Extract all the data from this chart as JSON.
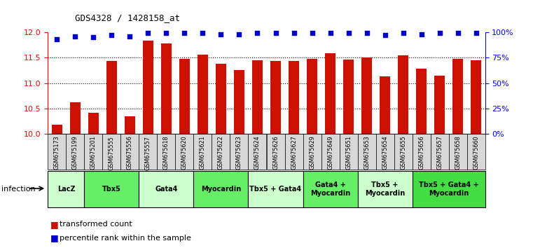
{
  "title": "GDS4328 / 1428158_at",
  "samples": [
    "GSM675173",
    "GSM675199",
    "GSM675201",
    "GSM675555",
    "GSM675556",
    "GSM675557",
    "GSM675618",
    "GSM675620",
    "GSM675621",
    "GSM675622",
    "GSM675623",
    "GSM675624",
    "GSM675626",
    "GSM675627",
    "GSM675629",
    "GSM675649",
    "GSM675651",
    "GSM675653",
    "GSM675654",
    "GSM675655",
    "GSM675656",
    "GSM675657",
    "GSM675658",
    "GSM675660"
  ],
  "bar_values": [
    10.18,
    10.62,
    10.42,
    11.44,
    10.35,
    11.84,
    11.78,
    11.47,
    11.56,
    11.38,
    11.25,
    11.45,
    11.44,
    11.44,
    11.47,
    11.58,
    11.46,
    11.5,
    11.13,
    11.55,
    11.28,
    11.15,
    11.47,
    11.45
  ],
  "dot_values": [
    93,
    96,
    95,
    97,
    96,
    99,
    99,
    99,
    99,
    98,
    98,
    99,
    99,
    99,
    99,
    99,
    99,
    99,
    97,
    99,
    98,
    99,
    99,
    99
  ],
  "groups": [
    {
      "label": "LacZ",
      "start": 0,
      "end": 2,
      "color": "#ccffcc"
    },
    {
      "label": "Tbx5",
      "start": 2,
      "end": 5,
      "color": "#66ee66"
    },
    {
      "label": "Gata4",
      "start": 5,
      "end": 8,
      "color": "#ccffcc"
    },
    {
      "label": "Myocardin",
      "start": 8,
      "end": 11,
      "color": "#66ee66"
    },
    {
      "label": "Tbx5 + Gata4",
      "start": 11,
      "end": 14,
      "color": "#ccffcc"
    },
    {
      "label": "Gata4 +\nMyocardin",
      "start": 14,
      "end": 17,
      "color": "#66ee66"
    },
    {
      "label": "Tbx5 +\nMyocardin",
      "start": 17,
      "end": 20,
      "color": "#ccffcc"
    },
    {
      "label": "Tbx5 + Gata4 +\nMyocardin",
      "start": 20,
      "end": 24,
      "color": "#44dd44"
    }
  ],
  "bar_color": "#cc1100",
  "dot_color": "#0000cc",
  "ylim_left": [
    10,
    12
  ],
  "ylim_right": [
    0,
    100
  ],
  "yticks_left": [
    10,
    10.5,
    11,
    11.5,
    12
  ],
  "yticks_right": [
    0,
    25,
    50,
    75,
    100
  ],
  "background_color": "#ffffff"
}
